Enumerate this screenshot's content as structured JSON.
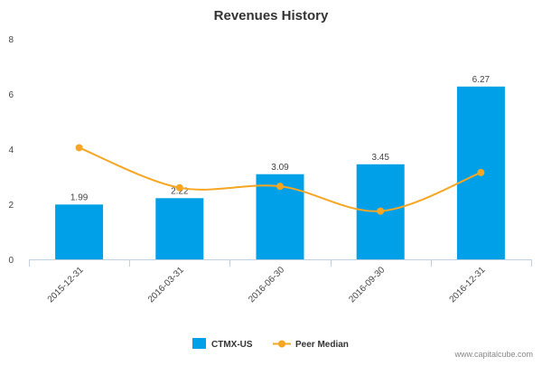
{
  "chart_data": {
    "type": "bar",
    "title": "Revenues History",
    "xlabel": "",
    "ylabel": "",
    "categories": [
      "2015-12-31",
      "2016-03-31",
      "2016-06-30",
      "2016-09-30",
      "2016-12-31"
    ],
    "ylim": [
      0,
      8
    ],
    "yticks": [
      0,
      2,
      4,
      6,
      8
    ],
    "grid": false,
    "legend_position": "bottom-center",
    "series": [
      {
        "name": "CTMX-US",
        "kind": "bar",
        "color": "#00a0e8",
        "values": [
          1.99,
          2.22,
          3.09,
          3.45,
          6.27
        ],
        "labels": [
          "1.99",
          "2.22",
          "3.09",
          "3.45",
          "6.27"
        ]
      },
      {
        "name": "Peer Median",
        "kind": "line",
        "color": "#f5a623",
        "values": [
          4.05,
          2.6,
          2.65,
          1.75,
          3.15
        ]
      }
    ]
  },
  "watermark": "www.capitalcube.com"
}
